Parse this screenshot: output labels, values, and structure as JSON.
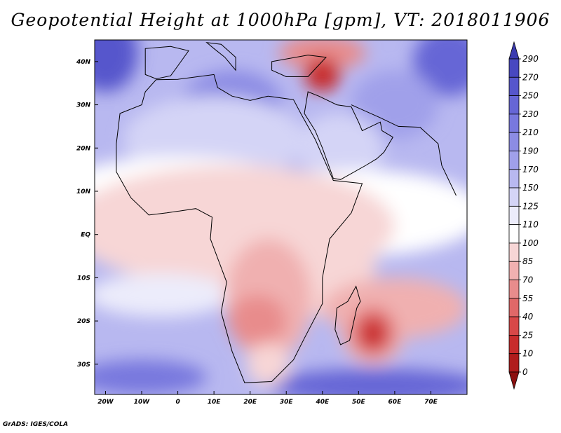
{
  "title": "Geopotential Height at 1000hPa [gpm], VT: 2018011906",
  "credit": "GrADS: IGES/COLA",
  "map": {
    "lon_range": [
      -23,
      80
    ],
    "lat_range": [
      -37,
      45
    ],
    "lat_ticks": [
      {
        "value": 40,
        "label": "40N"
      },
      {
        "value": 30,
        "label": "30N"
      },
      {
        "value": 20,
        "label": "20N"
      },
      {
        "value": 10,
        "label": "10N"
      },
      {
        "value": 0,
        "label": "EQ"
      },
      {
        "value": -10,
        "label": "10S"
      },
      {
        "value": -20,
        "label": "20S"
      },
      {
        "value": -30,
        "label": "30S"
      }
    ],
    "lon_ticks": [
      {
        "value": -20,
        "label": "20W"
      },
      {
        "value": -10,
        "label": "10W"
      },
      {
        "value": 0,
        "label": "0"
      },
      {
        "value": 10,
        "label": "10E"
      },
      {
        "value": 20,
        "label": "20E"
      },
      {
        "value": 30,
        "label": "30E"
      },
      {
        "value": 40,
        "label": "40E"
      },
      {
        "value": 50,
        "label": "50E"
      },
      {
        "value": 60,
        "label": "60E"
      },
      {
        "value": 70,
        "label": "70E"
      }
    ],
    "colorbar": {
      "levels": [
        "290",
        "270",
        "250",
        "230",
        "210",
        "190",
        "170",
        "150",
        "125",
        "110",
        "100",
        "85",
        "70",
        "55",
        "40",
        "25",
        "10",
        "0"
      ],
      "colors": [
        "#3a3ab0",
        "#4848c0",
        "#5656cc",
        "#6666d6",
        "#7878de",
        "#8c8ce4",
        "#a0a0ea",
        "#b8b8f0",
        "#d4d4f6",
        "#ececfb",
        "#ffffff",
        "#f7d6d6",
        "#f0b0b0",
        "#e88c8c",
        "#e06868",
        "#d84848",
        "#c82c2c",
        "#b01c1c",
        "#8c1010"
      ]
    },
    "field": {
      "background": "#b8b8f0",
      "blobs": [
        {
          "lon": -20,
          "lat": 42,
          "rx": 9,
          "ry": 9,
          "color": "#5656cc"
        },
        {
          "lon": 75,
          "lat": 40,
          "rx": 10,
          "ry": 8,
          "color": "#6666d6"
        },
        {
          "lon": 15,
          "lat": 30,
          "rx": 14,
          "ry": 8,
          "color": "#8c8ce4"
        },
        {
          "lon": 60,
          "lat": 30,
          "rx": 12,
          "ry": 8,
          "color": "#a0a0ea"
        },
        {
          "lon": 55,
          "lat": -35,
          "rx": 30,
          "ry": 4,
          "color": "#6666d6"
        },
        {
          "lon": -10,
          "lat": -33,
          "rx": 18,
          "ry": 4,
          "color": "#7878de"
        },
        {
          "lon": 10,
          "lat": 22,
          "rx": 25,
          "ry": 10,
          "color": "#d4d4f6"
        },
        {
          "lon": 45,
          "lat": 20,
          "rx": 12,
          "ry": 8,
          "color": "#d4d4f6"
        },
        {
          "lon": 0,
          "lat": 12,
          "rx": 30,
          "ry": 6,
          "color": "#ffffff"
        },
        {
          "lon": 50,
          "lat": 5,
          "rx": 35,
          "ry": 10,
          "color": "#ffffff"
        },
        {
          "lon": 15,
          "lat": 2,
          "rx": 45,
          "ry": 14,
          "color": "#f7d6d6"
        },
        {
          "lon": 40,
          "lat": -5,
          "rx": 15,
          "ry": 14,
          "color": "#f7d6d6"
        },
        {
          "lon": -5,
          "lat": -14,
          "rx": 20,
          "ry": 5,
          "color": "#ececfb"
        },
        {
          "lon": 25,
          "lat": -15,
          "rx": 12,
          "ry": 14,
          "color": "#f0b0b0"
        },
        {
          "lon": 60,
          "lat": -17,
          "rx": 20,
          "ry": 7,
          "color": "#f0b0b0"
        },
        {
          "lon": 22,
          "lat": -20,
          "rx": 8,
          "ry": 6,
          "color": "#e88c8c"
        },
        {
          "lon": 25,
          "lat": -30,
          "rx": 6,
          "ry": 5,
          "color": "#f7d6d6"
        },
        {
          "lon": 40,
          "lat": 42,
          "rx": 12,
          "ry": 4,
          "color": "#e88c8c"
        },
        {
          "lon": 40,
          "lat": 37,
          "rx": 5,
          "ry": 4,
          "color": "#c82c2c"
        },
        {
          "lon": 54,
          "lat": -22,
          "rx": 9,
          "ry": 8,
          "color": "#f0b0b0"
        },
        {
          "lon": 54,
          "lat": -22.5,
          "rx": 6,
          "ry": 5.5,
          "color": "#e06868"
        },
        {
          "lon": 54,
          "lat": -23,
          "rx": 3.5,
          "ry": 3.5,
          "color": "#c82c2c"
        }
      ]
    }
  }
}
